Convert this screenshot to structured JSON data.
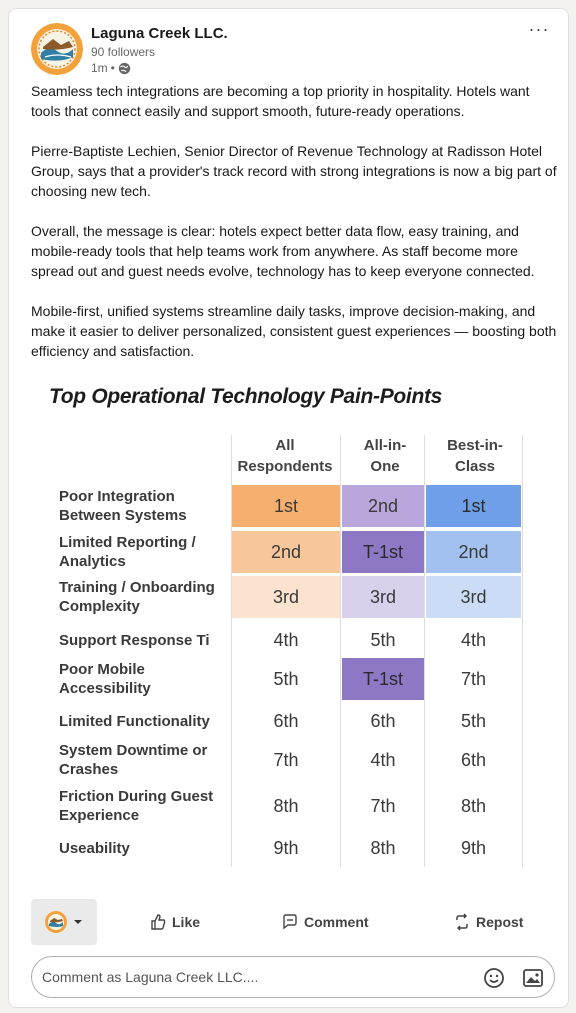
{
  "post": {
    "company": "Laguna Creek LLC.",
    "followers": "90 followers",
    "time": "1m",
    "dot": "•",
    "paragraphs": [
      "Seamless tech integrations are becoming a top priority in hospitality. Hotels want tools that connect easily and support smooth, future-ready operations.",
      "Pierre-Baptiste Lechien, Senior Director of Revenue Technology at Radisson Hotel Group, says that a provider's track record with strong integrations is now a big part of choosing new tech.",
      "Overall, the message is clear: hotels expect better data flow, easy training, and mobile-ready tools that help teams work from anywhere. As staff become more spread out and guest needs evolve, technology has to keep everyone connected.",
      "Mobile-first, unified systems streamline daily tasks, improve decision-making, and make it easier to deliver personalized, consistent guest experiences — boosting both efficiency and satisfaction."
    ]
  },
  "figure": {
    "title": "Top Operational Technology Pain-Points",
    "columns": [
      "All Respondents",
      "All-in-One",
      "Best-in-Class"
    ],
    "column_lines": [
      [
        "All",
        "Respondents"
      ],
      [
        "All-in-",
        "One"
      ],
      [
        "Best-in-",
        "Class"
      ]
    ],
    "rows": [
      {
        "label": [
          "Poor Integration",
          "Between Systems"
        ],
        "cells": [
          "1st",
          "2nd",
          "1st"
        ],
        "colors": [
          "#f5b070",
          "#b9a6dc",
          "#6f9fe8"
        ]
      },
      {
        "label": [
          "Limited Reporting /",
          "Analytics"
        ],
        "cells": [
          "2nd",
          "T-1st",
          "2nd"
        ],
        "colors": [
          "#f8c69b",
          "#8c78c4",
          "#a2c1f1"
        ]
      },
      {
        "label": [
          "Training / Onboarding",
          "Complexity"
        ],
        "cells": [
          "3rd",
          "3rd",
          "3rd"
        ],
        "colors": [
          "#fbe3cf",
          "#d9d0ec",
          "#cbdcf7"
        ]
      },
      {
        "label": [
          "Support Response Ti"
        ],
        "cells": [
          "4th",
          "5th",
          "4th"
        ],
        "colors": [
          "",
          "",
          ""
        ]
      },
      {
        "label": [
          "Poor Mobile",
          "Accessibility"
        ],
        "cells": [
          "5th",
          "T-1st",
          "7th"
        ],
        "colors": [
          "",
          "#8c78c4",
          ""
        ]
      },
      {
        "label": [
          "Limited Functionality"
        ],
        "cells": [
          "6th",
          "6th",
          "5th"
        ],
        "colors": [
          "",
          "",
          ""
        ]
      },
      {
        "label": [
          "System Downtime or",
          "Crashes"
        ],
        "cells": [
          "7th",
          "4th",
          "6th"
        ],
        "colors": [
          "",
          "",
          ""
        ]
      },
      {
        "label": [
          "Friction During Guest",
          "Experience"
        ],
        "cells": [
          "8th",
          "7th",
          "8th"
        ],
        "colors": [
          "",
          "",
          ""
        ]
      },
      {
        "label": [
          "Useability"
        ],
        "cells": [
          "9th",
          "8th",
          "9th"
        ],
        "colors": [
          "",
          "",
          ""
        ]
      }
    ]
  },
  "actions": {
    "like": "Like",
    "comment": "Comment",
    "repost": "Repost"
  },
  "comment_box": {
    "placeholder": "Comment as Laguna Creek LLC...."
  },
  "icons": [
    "more-options-icon",
    "globe-icon",
    "chevron-down-icon",
    "like-icon",
    "comment-icon",
    "repost-icon",
    "emoji-icon",
    "image-icon"
  ]
}
